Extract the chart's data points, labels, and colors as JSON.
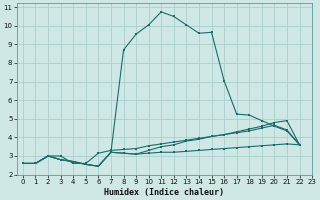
{
  "xlabel": "Humidex (Indice chaleur)",
  "xlim": [
    -0.5,
    23
  ],
  "ylim": [
    2,
    11.2
  ],
  "xticks": [
    0,
    1,
    2,
    3,
    4,
    5,
    6,
    7,
    8,
    9,
    10,
    11,
    12,
    13,
    14,
    15,
    16,
    17,
    18,
    19,
    20,
    21,
    22,
    23
  ],
  "yticks": [
    2,
    3,
    4,
    5,
    6,
    7,
    8,
    9,
    10,
    11
  ],
  "bg_color": "#cfe8e6",
  "grid_color": "#aacfcd",
  "line_color": "#1a6b6b",
  "series": [
    {
      "x": [
        0,
        1,
        2,
        3,
        4,
        5,
        6,
        7,
        8,
        9,
        10,
        11,
        12,
        13,
        14,
        15,
        16,
        17,
        18,
        19,
        20,
        21,
        22
      ],
      "y": [
        2.6,
        2.6,
        3.0,
        2.8,
        2.7,
        2.55,
        2.45,
        3.2,
        8.7,
        9.55,
        10.05,
        10.75,
        10.5,
        10.05,
        9.6,
        9.65,
        7.05,
        5.25,
        5.2,
        4.9,
        4.6,
        4.35,
        3.6
      ]
    },
    {
      "x": [
        0,
        1,
        2,
        3,
        4,
        5,
        6,
        7,
        8,
        9,
        10,
        11,
        12,
        13,
        14,
        15,
        16,
        17,
        18,
        19,
        20,
        21,
        22
      ],
      "y": [
        2.6,
        2.6,
        3.0,
        2.8,
        2.7,
        2.55,
        2.45,
        3.2,
        3.15,
        3.1,
        3.3,
        3.5,
        3.6,
        3.8,
        3.9,
        4.05,
        4.15,
        4.3,
        4.45,
        4.6,
        4.8,
        4.9,
        3.6
      ]
    },
    {
      "x": [
        0,
        1,
        2,
        3,
        4,
        5,
        6,
        7,
        8,
        9,
        10,
        11,
        12,
        13,
        14,
        15,
        16,
        17,
        18,
        19,
        20,
        21,
        22
      ],
      "y": [
        2.6,
        2.6,
        3.0,
        3.0,
        2.6,
        2.6,
        3.15,
        3.3,
        3.35,
        3.4,
        3.55,
        3.65,
        3.75,
        3.85,
        3.95,
        4.05,
        4.15,
        4.25,
        4.35,
        4.5,
        4.65,
        4.4,
        3.6
      ]
    },
    {
      "x": [
        0,
        1,
        2,
        3,
        4,
        5,
        6,
        7,
        8,
        9,
        10,
        11,
        12,
        13,
        14,
        15,
        16,
        17,
        18,
        19,
        20,
        21,
        22
      ],
      "y": [
        2.6,
        2.6,
        3.0,
        2.8,
        2.7,
        2.55,
        2.45,
        3.2,
        3.15,
        3.1,
        3.15,
        3.2,
        3.2,
        3.25,
        3.3,
        3.35,
        3.4,
        3.45,
        3.5,
        3.55,
        3.6,
        3.65,
        3.6
      ]
    }
  ]
}
